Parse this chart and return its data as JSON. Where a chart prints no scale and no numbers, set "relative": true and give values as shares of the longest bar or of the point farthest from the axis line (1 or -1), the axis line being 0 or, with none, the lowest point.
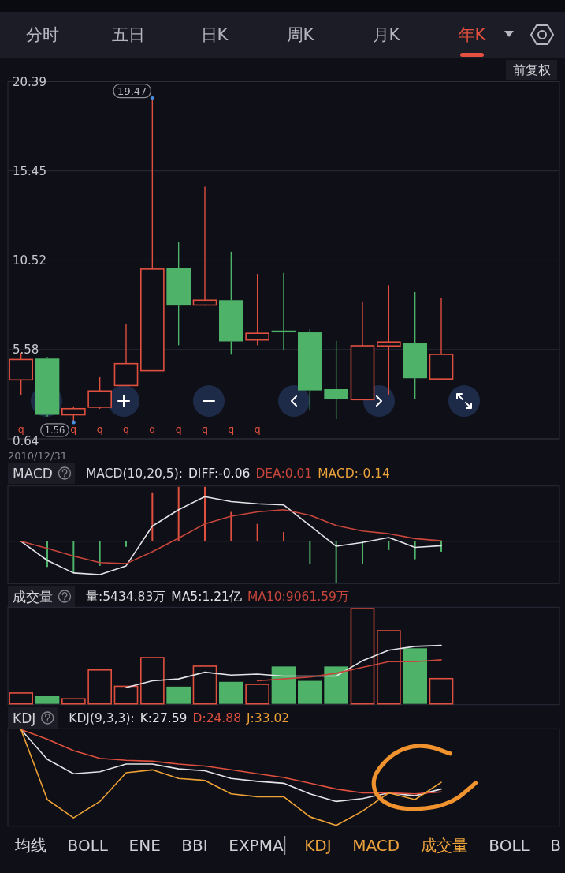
{
  "chart_data": [
    {
      "type": "other",
      "annotations": [
        "分时",
        "五日",
        "日K",
        "周K",
        "月K",
        "年K",
        "前复权"
      ]
    },
    {
      "type": "candlestick",
      "categories": [
        null,
        null,
        null,
        null,
        null,
        null,
        null,
        null,
        null,
        null,
        null,
        null,
        null,
        null,
        null,
        null,
        null,
        null,
        null,
        null,
        null
      ],
      "ohlc": [
        [
          3.9,
          5.4,
          3.07,
          5.03
        ],
        [
          5.08,
          5.17,
          1.87,
          1.97
        ],
        [
          1.97,
          2.44,
          1.56,
          2.31
        ],
        [
          2.39,
          4.07,
          2.3,
          3.29
        ],
        [
          3.59,
          7.0,
          3.59,
          4.8
        ],
        [
          4.41,
          19.47,
          4.4,
          10.03
        ],
        [
          10.09,
          11.55,
          5.82,
          8.01
        ],
        [
          8.04,
          14.59,
          8.0,
          8.31
        ],
        [
          8.31,
          10.99,
          5.3,
          6.03
        ],
        [
          6.11,
          9.76,
          5.82,
          6.48
        ],
        [
          6.63,
          9.82,
          5.54,
          6.53
        ],
        [
          6.53,
          6.7,
          2.25,
          3.32
        ],
        [
          3.39,
          6.06,
          1.73,
          2.84
        ],
        [
          2.81,
          8.24,
          2.8,
          5.79
        ],
        [
          5.78,
          9.14,
          3.09,
          6.0
        ],
        [
          5.92,
          8.76,
          2.83,
          3.99
        ],
        [
          3.95,
          8.42,
          3.9,
          5.31
        ],
        null,
        null,
        null,
        null
      ],
      "colors": [
        "#e0503f",
        "#4eb268",
        "#e0503f",
        "#e0503f",
        "#e0503f",
        "#e0503f",
        "#4eb268",
        "#e0503f",
        "#4eb268",
        "#e0503f",
        "#4eb268",
        "#4eb268",
        "#4eb268",
        "#e0503f",
        "#e0503f",
        "#4eb268",
        "#e0503f",
        null,
        null,
        null,
        null
      ],
      "value_labels": [
        "q",
        null,
        "q",
        "q",
        "q",
        "q",
        "q",
        "q",
        "q",
        "q",
        null,
        null,
        null,
        null,
        null,
        null,
        null,
        null,
        null,
        null,
        null
      ],
      "ylim": [
        0.64,
        20.39
      ],
      "yticks": [
        0.64,
        5.58,
        10.52,
        15.45,
        20.39
      ],
      "grid": "y",
      "annotations": [
        "19.47",
        "1.56",
        "2010/12/31"
      ]
    },
    {
      "type": "line",
      "title": "MACD",
      "subtitle": "MACD(10,20,5):",
      "relative": true,
      "legend": "top",
      "categories": [
        null,
        null,
        null,
        null,
        null,
        null,
        null,
        null,
        null,
        null,
        null,
        null,
        null,
        null,
        null,
        null,
        null,
        null,
        null,
        null,
        null
      ],
      "series": [
        {
          "name": "DIFF:-0.06",
          "color": "#e4e4e8",
          "values": [
            0,
            -0.35,
            -0.58,
            -0.61,
            -0.45,
            0.28,
            0.58,
            0.82,
            0.73,
            0.69,
            0.67,
            0.29,
            -0.09,
            -0.02,
            0.07,
            -0.11,
            -0.08,
            null,
            null,
            null,
            null
          ]
        },
        {
          "name": "DEA:0.01",
          "color": "#c8463b",
          "values": [
            0,
            -0.13,
            -0.27,
            -0.39,
            -0.41,
            -0.19,
            0.06,
            0.32,
            0.46,
            0.54,
            0.58,
            0.48,
            0.29,
            0.19,
            0.14,
            0.05,
            0.01,
            null,
            null,
            null,
            null
          ]
        },
        {
          "type": "bar",
          "colors": [
            null,
            "#4eb268",
            "#4eb268",
            "#4eb268",
            "#4eb268",
            "#e0503f",
            "#e0503f",
            "#e0503f",
            "#e0503f",
            "#e0503f",
            "#e0503f",
            "#4eb268",
            "#4eb268",
            "#4eb268",
            "#4eb268",
            "#4eb268",
            "#4eb268",
            null,
            null,
            null,
            null
          ],
          "values": [
            null,
            -0.47,
            -0.58,
            -0.45,
            -0.1,
            0.9,
            1.0,
            1.0,
            0.54,
            0.32,
            0.17,
            -0.42,
            -0.76,
            -0.41,
            -0.16,
            -0.33,
            -0.19,
            null,
            null,
            null,
            null
          ]
        }
      ],
      "annotations": [
        "MACD:-0.14"
      ]
    },
    {
      "type": "bar",
      "title": "成交量",
      "subtitle": "量:5434.83万",
      "relative": true,
      "legend": "top",
      "categories": [
        null,
        null,
        null,
        null,
        null,
        null,
        null,
        null,
        null,
        null,
        null,
        null,
        null,
        null,
        null,
        null,
        null,
        null,
        null,
        null,
        null
      ],
      "series": [
        {
          "colors": [
            "#e0503f",
            "#4eb268",
            "#e0503f",
            "#e0503f",
            "#e0503f",
            "#e0503f",
            "#4eb268",
            "#e0503f",
            "#4eb268",
            "#e0503f",
            "#4eb268",
            "#4eb268",
            "#4eb268",
            "#e0503f",
            "#e0503f",
            "#4eb268",
            "#e0503f",
            null,
            null,
            null,
            null
          ],
          "values": [
            0.12,
            0.08,
            0.06,
            0.36,
            0.19,
            0.49,
            0.18,
            0.4,
            0.23,
            0.21,
            0.39,
            0.24,
            0.39,
            1.0,
            0.77,
            0.58,
            0.27,
            null,
            null,
            null,
            null
          ]
        },
        {
          "name": "MA5:1.21亿",
          "type": "line",
          "color": "#e4e4e8",
          "values": [
            null,
            null,
            null,
            null,
            0.17,
            0.24,
            0.26,
            0.33,
            0.3,
            0.31,
            0.29,
            0.29,
            0.29,
            0.45,
            0.56,
            0.6,
            0.61,
            null,
            null,
            null,
            null
          ]
        },
        {
          "name": "MA10:9061.59万",
          "type": "line",
          "color": "#c8463b",
          "values": [
            null,
            null,
            null,
            null,
            null,
            null,
            null,
            null,
            null,
            0.24,
            0.26,
            0.28,
            0.32,
            0.38,
            0.44,
            0.44,
            0.46,
            null,
            null,
            null,
            null
          ]
        }
      ]
    },
    {
      "type": "line",
      "title": "KDJ",
      "subtitle": "KDJ(9,3,3):",
      "relative": true,
      "legend": "top",
      "categories": [
        null,
        null,
        null,
        null,
        null,
        null,
        null,
        null,
        null,
        null,
        null,
        null,
        null,
        null,
        null,
        null,
        null,
        null,
        null,
        null,
        null
      ],
      "series": [
        {
          "name": "K:27.59",
          "color": "#e4e4e8",
          "values": [
            1.0,
            0.69,
            0.54,
            0.56,
            0.64,
            0.64,
            0.59,
            0.57,
            0.49,
            0.46,
            0.44,
            0.33,
            0.25,
            0.28,
            0.34,
            0.31,
            0.38,
            null,
            null,
            null,
            null
          ]
        },
        {
          "name": "D:24.88",
          "color": "#e0503f",
          "values": [
            1.0,
            0.9,
            0.78,
            0.7,
            0.68,
            0.67,
            0.64,
            0.62,
            0.58,
            0.54,
            0.5,
            0.44,
            0.38,
            0.34,
            0.34,
            0.33,
            0.35,
            null,
            null,
            null,
            null
          ]
        },
        {
          "name": "J:33.02",
          "color": "#eea236",
          "values": [
            1.0,
            0.27,
            0.08,
            0.25,
            0.55,
            0.58,
            0.49,
            0.47,
            0.33,
            0.3,
            0.3,
            0.09,
            0.0,
            0.15,
            0.34,
            0.27,
            0.45,
            null,
            null,
            null,
            null
          ]
        }
      ]
    },
    {
      "type": "other",
      "annotations": [
        "均线",
        "BOLL",
        "ENE",
        "BBI",
        "EXPMA",
        "KDJ",
        "MACD",
        "成交量",
        "BOLL",
        "B"
      ]
    }
  ]
}
